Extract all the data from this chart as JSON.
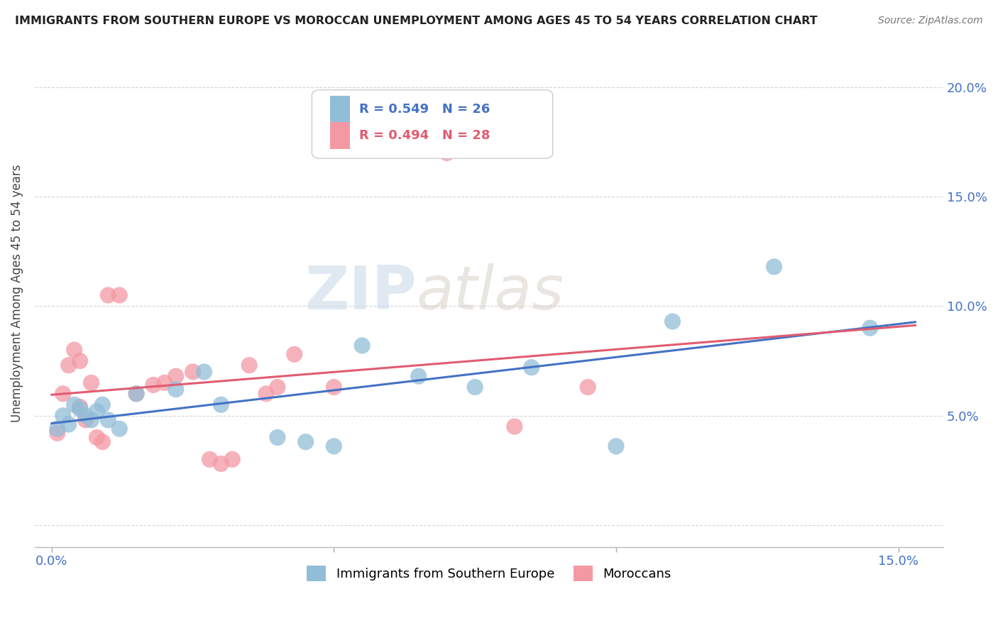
{
  "title": "IMMIGRANTS FROM SOUTHERN EUROPE VS MOROCCAN UNEMPLOYMENT AMONG AGES 45 TO 54 YEARS CORRELATION CHART",
  "source": "Source: ZipAtlas.com",
  "ylabel": "Unemployment Among Ages 45 to 54 years",
  "x_tick_positions": [
    0.0,
    0.05,
    0.1,
    0.15
  ],
  "x_tick_labels": [
    "0.0%",
    "",
    "",
    "15.0%"
  ],
  "y_tick_positions": [
    0.0,
    0.05,
    0.1,
    0.15,
    0.2
  ],
  "y_tick_labels": [
    "",
    "5.0%",
    "10.0%",
    "15.0%",
    "20.0%"
  ],
  "xlim": [
    -0.003,
    0.158
  ],
  "ylim": [
    -0.01,
    0.222
  ],
  "R_blue": 0.549,
  "N_blue": 26,
  "R_pink": 0.494,
  "N_pink": 28,
  "blue_color": "#92BDD8",
  "pink_color": "#F499A4",
  "blue_line_color": "#4472C4",
  "pink_line_color": "#E05C70",
  "legend_label_blue": "Immigrants from Southern Europe",
  "legend_label_pink": "Moroccans",
  "watermark_zip": "ZIP",
  "watermark_atlas": "atlas",
  "blue_x": [
    0.001,
    0.002,
    0.003,
    0.004,
    0.005,
    0.006,
    0.007,
    0.008,
    0.009,
    0.01,
    0.012,
    0.015,
    0.022,
    0.027,
    0.03,
    0.04,
    0.045,
    0.05,
    0.055,
    0.065,
    0.075,
    0.085,
    0.1,
    0.11,
    0.128,
    0.145
  ],
  "blue_y": [
    0.044,
    0.05,
    0.046,
    0.055,
    0.053,
    0.05,
    0.048,
    0.052,
    0.055,
    0.048,
    0.044,
    0.06,
    0.062,
    0.07,
    0.055,
    0.04,
    0.038,
    0.036,
    0.082,
    0.068,
    0.063,
    0.072,
    0.036,
    0.093,
    0.118,
    0.09
  ],
  "pink_x": [
    0.001,
    0.002,
    0.003,
    0.004,
    0.005,
    0.005,
    0.006,
    0.007,
    0.008,
    0.009,
    0.01,
    0.012,
    0.015,
    0.018,
    0.02,
    0.022,
    0.025,
    0.028,
    0.03,
    0.032,
    0.035,
    0.038,
    0.04,
    0.043,
    0.05,
    0.07,
    0.082,
    0.095
  ],
  "pink_y": [
    0.042,
    0.06,
    0.073,
    0.08,
    0.054,
    0.075,
    0.048,
    0.065,
    0.04,
    0.038,
    0.105,
    0.105,
    0.06,
    0.064,
    0.065,
    0.068,
    0.07,
    0.03,
    0.028,
    0.03,
    0.073,
    0.06,
    0.063,
    0.078,
    0.063,
    0.17,
    0.045,
    0.063
  ]
}
